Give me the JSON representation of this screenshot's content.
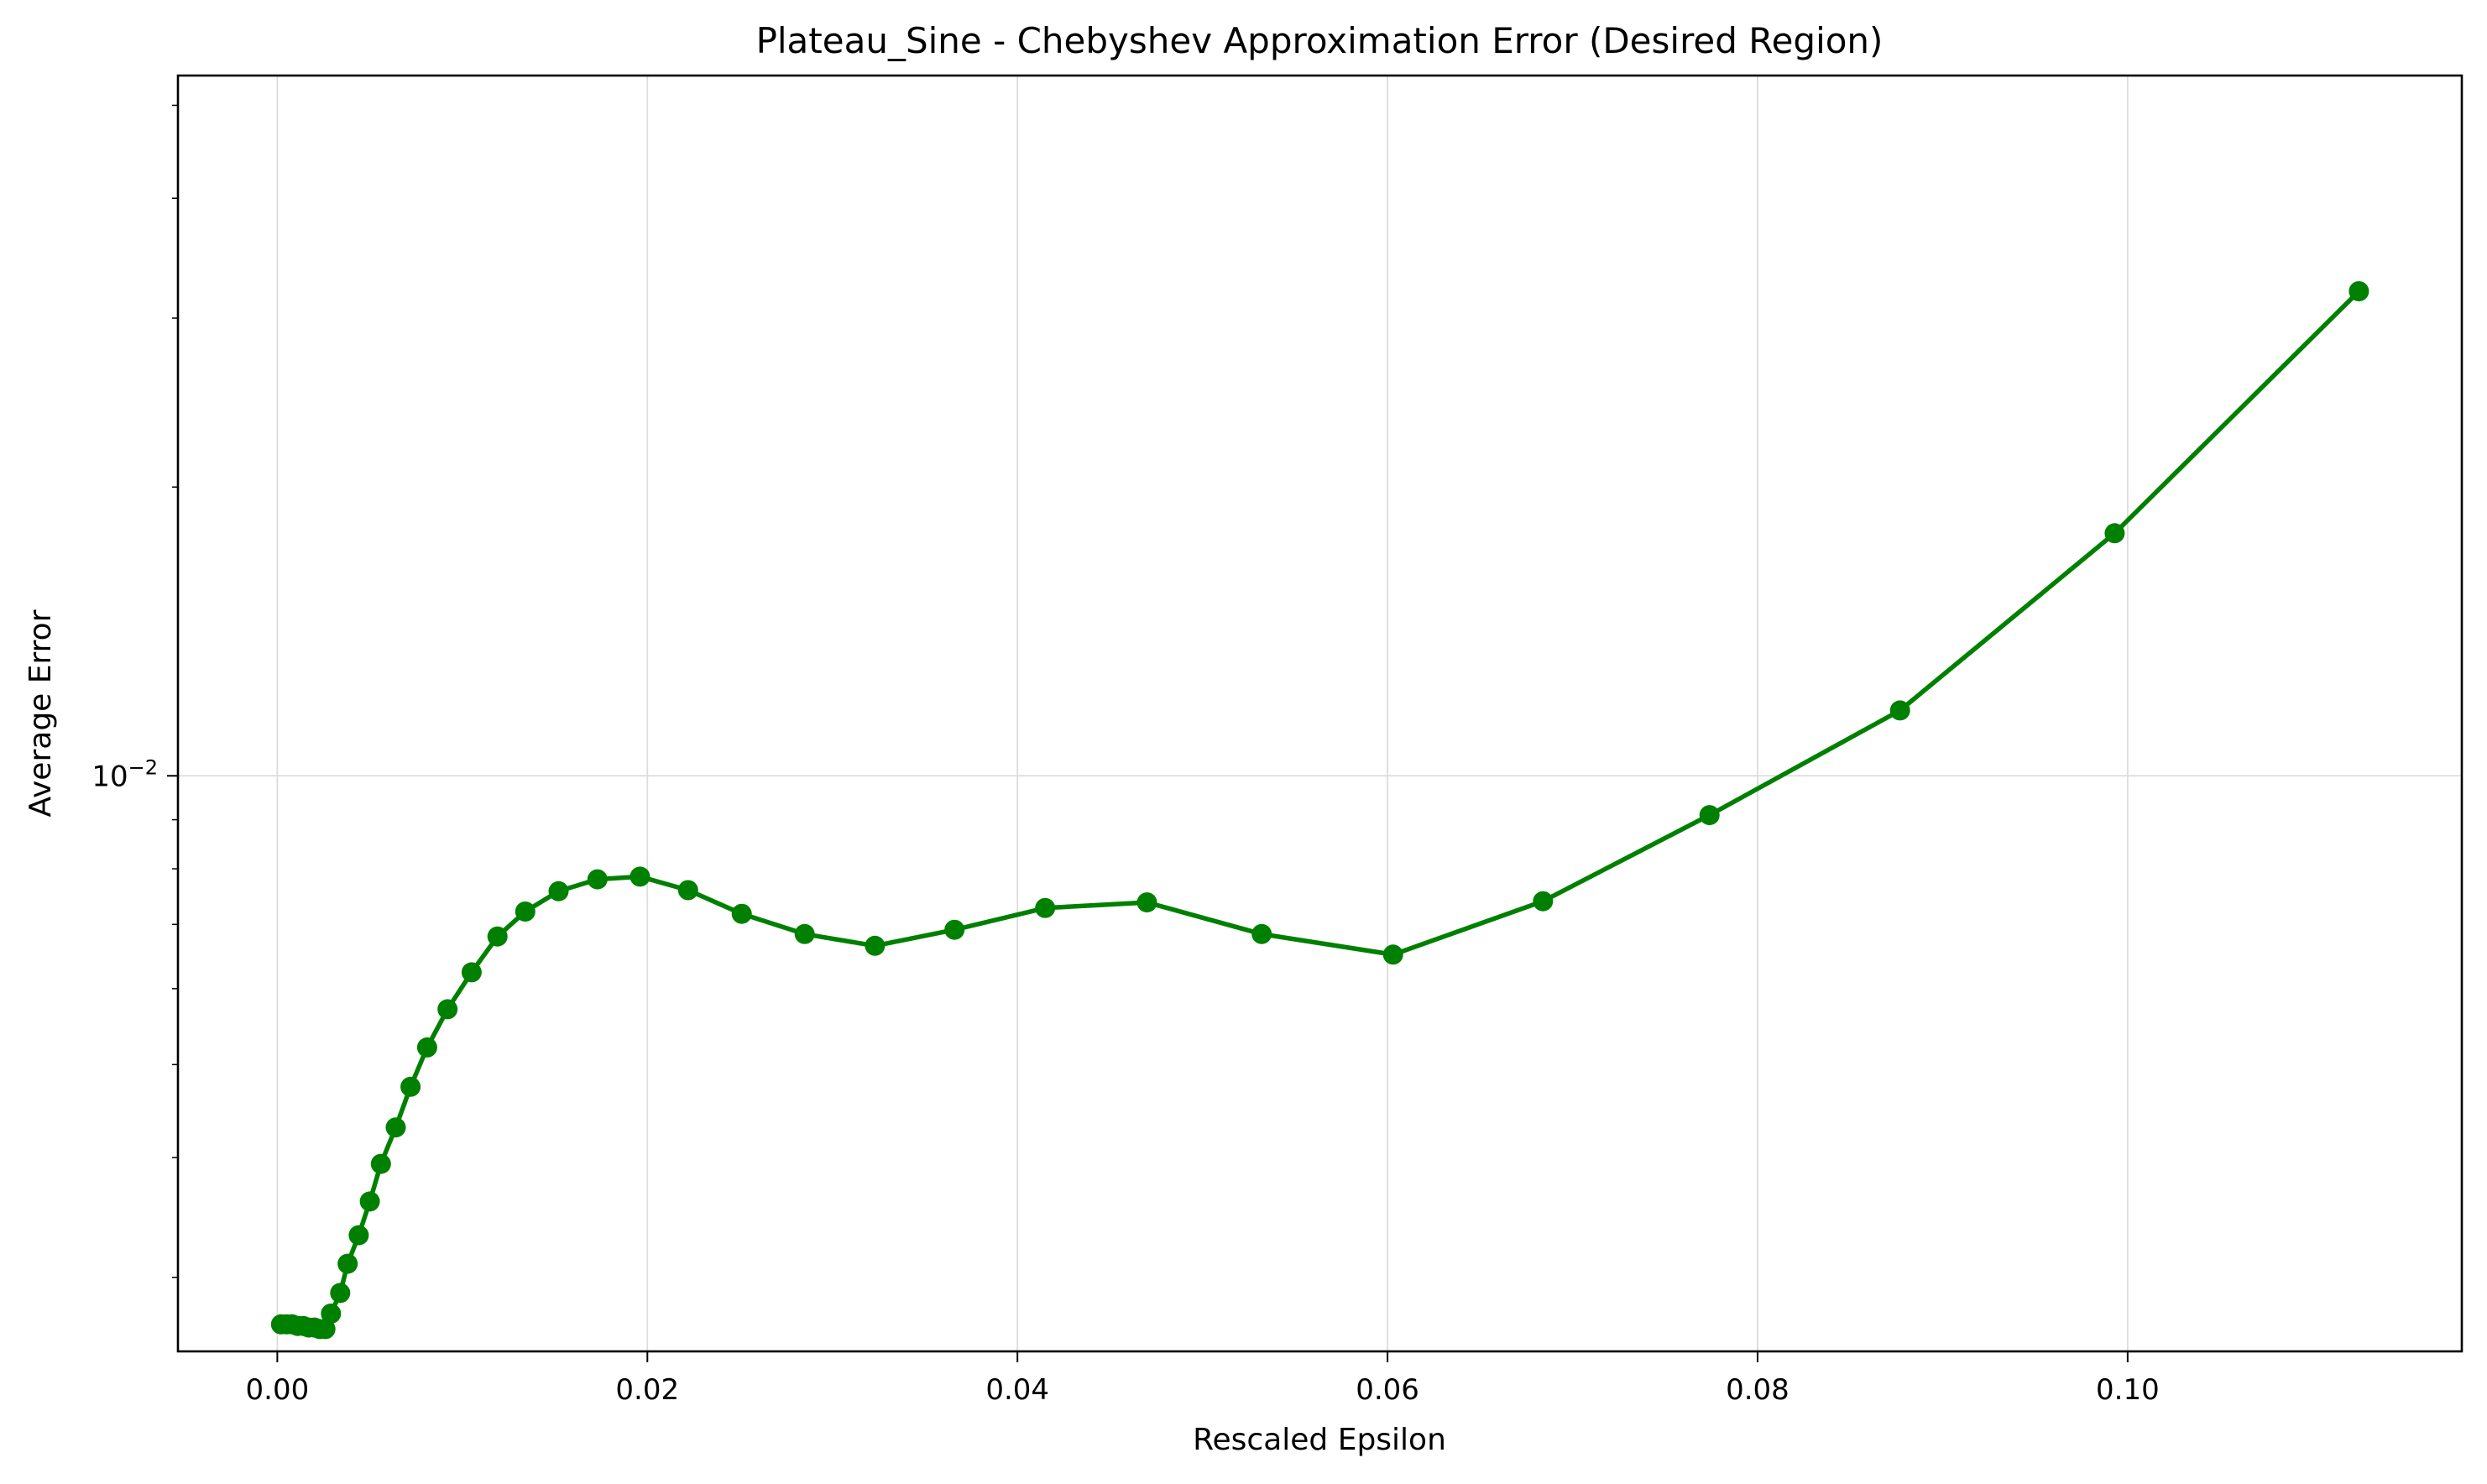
{
  "chart_data": {
    "type": "line",
    "title": "Plateau_Sine - Chebyshev Approximation Error (Desired Region)",
    "xlabel": "Rescaled Epsilon",
    "ylabel": "Average Error",
    "xlim": [
      -0.00537,
      0.11806
    ],
    "ylim_log10": [
      -2.6,
      -1.27
    ],
    "yscale": "log",
    "grid": true,
    "x_ticks": [
      0.0,
      0.02,
      0.04,
      0.06,
      0.08,
      0.1
    ],
    "x_tick_labels": [
      "0.00",
      "0.02",
      "0.04",
      "0.06",
      "0.08",
      "0.10"
    ],
    "y_ticks": [
      0.01
    ],
    "y_tick_base": "10",
    "y_tick_exponent": "−2",
    "y_minor_ticks": [
      0.0025,
      0.003,
      0.004,
      0.005,
      0.006,
      0.007,
      0.008,
      0.009,
      0.02,
      0.03,
      0.04,
      0.05
    ],
    "color": "#008000",
    "series": [
      {
        "x": [
          0.0002,
          0.0005,
          0.0008,
          0.0011,
          0.0014,
          0.0017,
          0.002,
          0.0023,
          0.0026,
          0.0029,
          0.0034,
          0.0038,
          0.0044,
          0.005,
          0.0056,
          0.0064,
          0.0072,
          0.0081,
          0.0092,
          0.0105,
          0.0119,
          0.0134,
          0.0152,
          0.0173,
          0.0196,
          0.0222,
          0.0251,
          0.0285,
          0.0323,
          0.0366,
          0.0415,
          0.047,
          0.0532,
          0.0603,
          0.0684,
          0.0774,
          0.0877,
          0.0993,
          0.1125
        ],
        "y": [
          0.00268,
          0.00268,
          0.00268,
          0.00267,
          0.00267,
          0.00266,
          0.00266,
          0.00265,
          0.00265,
          0.00275,
          0.00289,
          0.0031,
          0.00332,
          0.0036,
          0.00394,
          0.0043,
          0.00474,
          0.00521,
          0.00571,
          0.00624,
          0.0068,
          0.00722,
          0.00758,
          0.0078,
          0.00785,
          0.0076,
          0.00718,
          0.00684,
          0.00665,
          0.00691,
          0.00728,
          0.00738,
          0.00684,
          0.00651,
          0.0074,
          0.0091,
          0.0117,
          0.0179,
          0.032
        ]
      }
    ]
  }
}
